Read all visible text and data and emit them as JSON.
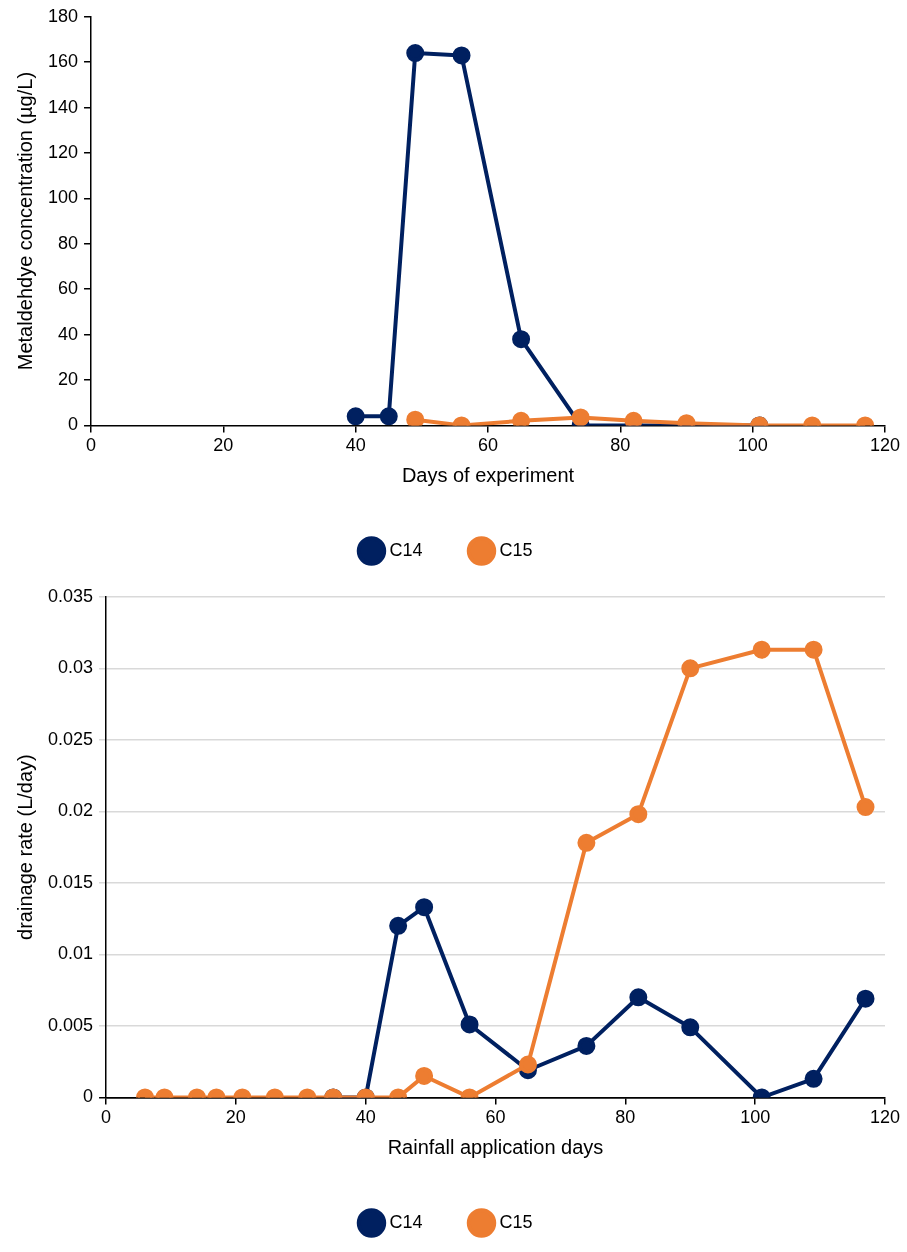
{
  "chart_data": [
    {
      "type": "line",
      "xlabel": "Days of experiment",
      "ylabel": "Metaldehdye concentration (µg/L)",
      "xlim": [
        0,
        120
      ],
      "xticks": [
        0,
        20,
        40,
        60,
        80,
        100,
        120
      ],
      "ylim": [
        0,
        180
      ],
      "yticks": [
        0,
        20,
        40,
        60,
        80,
        100,
        120,
        140,
        160,
        180
      ],
      "grid": false,
      "legend": "bottom",
      "marker": "circle",
      "series": [
        {
          "name": "C14",
          "color": "#002060",
          "x": [
            40,
            45,
            49,
            56,
            65,
            74,
            82,
            90,
            101
          ],
          "values": [
            4,
            4,
            164,
            163,
            38,
            0,
            0,
            0,
            0
          ]
        },
        {
          "name": "C15",
          "color": "#ed7d31",
          "x": [
            49,
            56,
            65,
            74,
            82,
            90,
            101,
            109,
            117
          ],
          "values": [
            2.5,
            0,
            2,
            3.5,
            2,
            1,
            0,
            0,
            0
          ]
        }
      ]
    },
    {
      "type": "line",
      "xlabel": "Rainfall application days",
      "ylabel": "drainage rate (L/day)",
      "xlim": [
        0,
        120
      ],
      "xticks": [
        0,
        20,
        40,
        60,
        80,
        100,
        120
      ],
      "ylim": [
        0,
        0.035
      ],
      "yticks": [
        0,
        0.005,
        0.01,
        0.015,
        0.02,
        0.025,
        0.03,
        0.035
      ],
      "grid": "y",
      "legend": "bottom",
      "marker": "circle",
      "series": [
        {
          "name": "C14",
          "color": "#002060",
          "x": [
            35,
            40,
            45,
            49,
            56,
            65,
            74,
            82,
            90,
            101,
            109,
            117
          ],
          "values": [
            0,
            0,
            0.012,
            0.0133,
            0.0051,
            0.0019,
            0.0036,
            0.007,
            0.0049,
            0,
            0.0013,
            0.0069
          ]
        },
        {
          "name": "C15",
          "color": "#ed7d31",
          "x": [
            6,
            9,
            14,
            17,
            21,
            26,
            31,
            35,
            40,
            45,
            49,
            56,
            65,
            74,
            82,
            90,
            101,
            109,
            117
          ],
          "values": [
            0,
            0,
            0,
            0,
            0,
            0,
            0,
            0,
            0,
            0,
            0.0015,
            0,
            0.0023,
            0.0178,
            0.0198,
            0.03,
            0.0313,
            0.0313,
            0.0203
          ]
        }
      ]
    }
  ]
}
